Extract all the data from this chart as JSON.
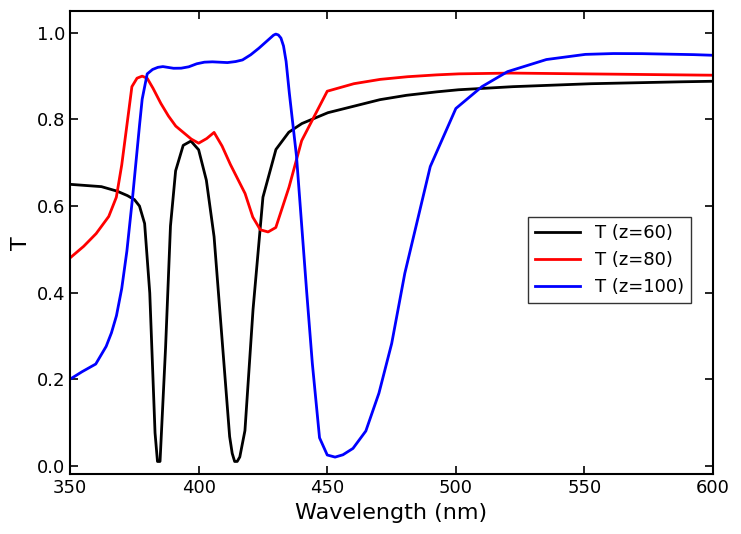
{
  "title": "",
  "xlabel": "Wavelength (nm)",
  "ylabel": "T",
  "xlim": [
    350,
    600
  ],
  "ylim": [
    -0.02,
    1.05
  ],
  "yticks": [
    0.0,
    0.2,
    0.4,
    0.6,
    0.8,
    1.0
  ],
  "xticks": [
    350,
    400,
    450,
    500,
    550,
    600
  ],
  "background_color": "#ffffff",
  "legend_labels": [
    "T (z=60)",
    "T (z=80)",
    "T (z=100)"
  ],
  "line_width": 2.0,
  "z60_x": [
    350,
    362,
    368,
    372,
    375,
    377,
    379,
    381,
    383,
    384,
    385,
    387,
    389,
    391,
    394,
    397,
    400,
    403,
    406,
    409,
    412,
    413,
    414,
    415,
    416,
    418,
    421,
    425,
    430,
    435,
    440,
    450,
    460,
    470,
    480,
    490,
    500,
    520,
    550,
    580,
    600
  ],
  "z60_y": [
    0.65,
    0.645,
    0.635,
    0.625,
    0.615,
    0.6,
    0.56,
    0.4,
    0.08,
    0.01,
    0.01,
    0.25,
    0.55,
    0.68,
    0.74,
    0.75,
    0.73,
    0.66,
    0.53,
    0.3,
    0.07,
    0.03,
    0.01,
    0.01,
    0.02,
    0.08,
    0.35,
    0.62,
    0.73,
    0.77,
    0.79,
    0.815,
    0.83,
    0.845,
    0.855,
    0.862,
    0.868,
    0.875,
    0.882,
    0.886,
    0.888
  ],
  "z80_x": [
    350,
    355,
    360,
    365,
    368,
    370,
    372,
    374,
    376,
    378,
    380,
    382,
    385,
    388,
    391,
    394,
    397,
    400,
    403,
    406,
    409,
    412,
    415,
    418,
    421,
    424,
    427,
    430,
    435,
    440,
    450,
    460,
    470,
    480,
    490,
    500,
    520,
    550,
    580,
    600
  ],
  "z80_y": [
    0.48,
    0.505,
    0.535,
    0.575,
    0.62,
    0.69,
    0.78,
    0.875,
    0.895,
    0.9,
    0.895,
    0.875,
    0.84,
    0.81,
    0.785,
    0.77,
    0.755,
    0.745,
    0.755,
    0.77,
    0.74,
    0.7,
    0.665,
    0.63,
    0.575,
    0.545,
    0.54,
    0.55,
    0.64,
    0.75,
    0.865,
    0.882,
    0.892,
    0.898,
    0.902,
    0.905,
    0.907,
    0.905,
    0.903,
    0.902
  ],
  "z100_x": [
    350,
    354,
    357,
    360,
    362,
    364,
    366,
    368,
    370,
    372,
    374,
    376,
    378,
    380,
    382,
    384,
    386,
    388,
    390,
    393,
    396,
    399,
    402,
    405,
    408,
    411,
    414,
    417,
    420,
    423,
    426,
    428,
    429,
    430,
    431,
    432,
    433,
    434,
    435,
    438,
    441,
    444,
    447,
    450,
    453,
    456,
    460,
    465,
    470,
    475,
    480,
    490,
    500,
    510,
    520,
    535,
    550,
    560,
    570,
    580,
    590,
    600
  ],
  "z100_y": [
    0.2,
    0.215,
    0.225,
    0.235,
    0.255,
    0.275,
    0.305,
    0.345,
    0.405,
    0.49,
    0.6,
    0.725,
    0.845,
    0.905,
    0.915,
    0.92,
    0.922,
    0.92,
    0.918,
    0.918,
    0.921,
    0.928,
    0.932,
    0.933,
    0.932,
    0.931,
    0.933,
    0.937,
    0.948,
    0.962,
    0.978,
    0.989,
    0.994,
    0.997,
    0.995,
    0.988,
    0.97,
    0.935,
    0.875,
    0.72,
    0.48,
    0.25,
    0.065,
    0.025,
    0.02,
    0.025,
    0.04,
    0.08,
    0.165,
    0.28,
    0.44,
    0.69,
    0.825,
    0.875,
    0.91,
    0.938,
    0.95,
    0.952,
    0.952,
    0.951,
    0.95,
    0.948
  ]
}
